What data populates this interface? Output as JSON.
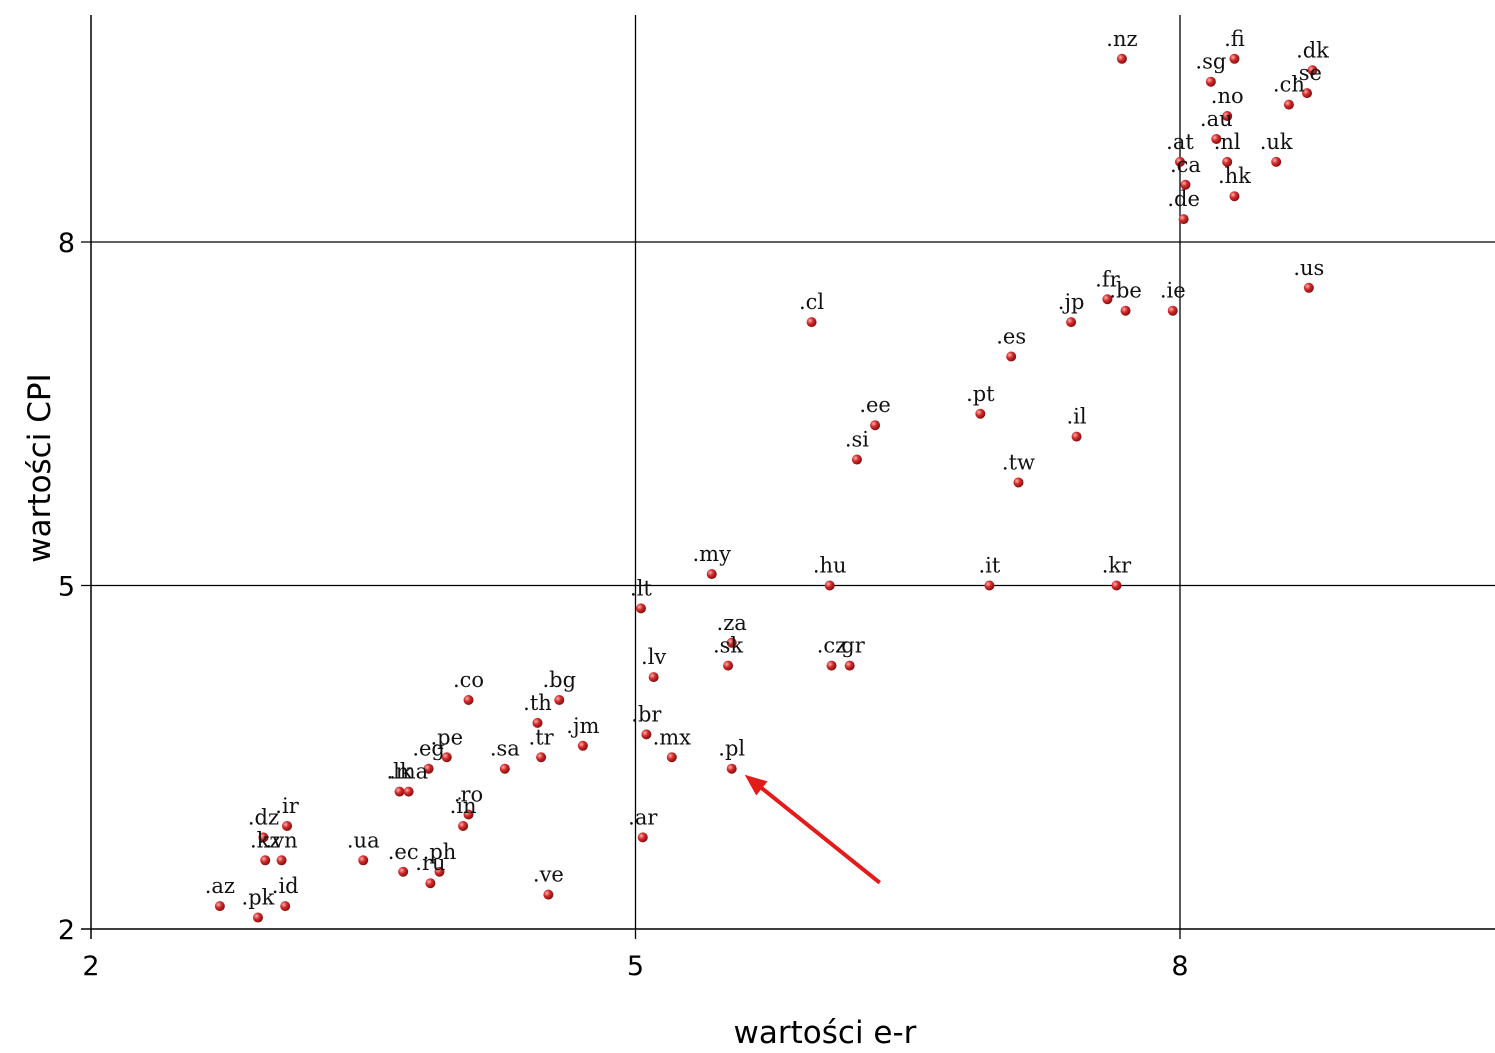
{
  "chart_data": {
    "type": "scatter",
    "xlabel": "wartości e-r",
    "ylabel": "wartości CPI",
    "xlim": [
      2,
      9.73
    ],
    "ylim": [
      2,
      10.27
    ],
    "xticks": [
      2,
      5,
      8
    ],
    "yticks": [
      2,
      5,
      8
    ],
    "grid": "reference lines at x=5, x=8, y=5, y=8",
    "marker_color": "#d42a2a",
    "arrow_color": "#e31b1b",
    "annotation": {
      "type": "arrow",
      "points_to": ".pl"
    },
    "points": [
      {
        "label": ".nz",
        "x": 7.68,
        "y": 9.6
      },
      {
        "label": ".fi",
        "x": 8.3,
        "y": 9.6
      },
      {
        "label": ".sg",
        "x": 8.17,
        "y": 9.4
      },
      {
        "label": ".dk",
        "x": 8.73,
        "y": 9.5
      },
      {
        "label": ".se",
        "x": 8.7,
        "y": 9.3
      },
      {
        "label": ".ch",
        "x": 8.6,
        "y": 9.2
      },
      {
        "label": ".no",
        "x": 8.26,
        "y": 9.1
      },
      {
        "label": ".au",
        "x": 8.2,
        "y": 8.9
      },
      {
        "label": ".nl",
        "x": 8.26,
        "y": 8.7
      },
      {
        "label": ".at",
        "x": 8.0,
        "y": 8.7
      },
      {
        "label": ".uk",
        "x": 8.53,
        "y": 8.7
      },
      {
        "label": ".ca",
        "x": 8.03,
        "y": 8.5
      },
      {
        "label": ".hk",
        "x": 8.3,
        "y": 8.4
      },
      {
        "label": ".de",
        "x": 8.02,
        "y": 8.2
      },
      {
        "label": ".us",
        "x": 8.71,
        "y": 7.6
      },
      {
        "label": ".fr",
        "x": 7.6,
        "y": 7.5
      },
      {
        "label": ".be",
        "x": 7.7,
        "y": 7.4
      },
      {
        "label": ".ie",
        "x": 7.96,
        "y": 7.4
      },
      {
        "label": ".jp",
        "x": 7.4,
        "y": 7.3
      },
      {
        "label": ".cl",
        "x": 5.97,
        "y": 7.3
      },
      {
        "label": ".es",
        "x": 7.07,
        "y": 7.0
      },
      {
        "label": ".pt",
        "x": 6.9,
        "y": 6.5
      },
      {
        "label": ".ee",
        "x": 6.32,
        "y": 6.4
      },
      {
        "label": ".il",
        "x": 7.43,
        "y": 6.3
      },
      {
        "label": ".si",
        "x": 6.22,
        "y": 6.1
      },
      {
        "label": ".tw",
        "x": 7.11,
        "y": 5.9
      },
      {
        "label": ".my",
        "x": 5.42,
        "y": 5.1
      },
      {
        "label": ".hu",
        "x": 6.07,
        "y": 5.0
      },
      {
        "label": ".it",
        "x": 6.95,
        "y": 5.0
      },
      {
        "label": ".kr",
        "x": 7.65,
        "y": 5.0
      },
      {
        "label": ".lt",
        "x": 5.03,
        "y": 4.8
      },
      {
        "label": ".za",
        "x": 5.53,
        "y": 4.5
      },
      {
        "label": ".sk",
        "x": 5.51,
        "y": 4.3
      },
      {
        "label": ".cz",
        "x": 6.08,
        "y": 4.3
      },
      {
        "label": ".gr",
        "x": 6.18,
        "y": 4.3
      },
      {
        "label": ".lv",
        "x": 5.1,
        "y": 4.2
      },
      {
        "label": ".co",
        "x": 4.08,
        "y": 4.0
      },
      {
        "label": ".bg",
        "x": 4.58,
        "y": 4.0
      },
      {
        "label": ".th",
        "x": 4.46,
        "y": 3.8
      },
      {
        "label": ".br",
        "x": 5.06,
        "y": 3.7
      },
      {
        "label": ".jm",
        "x": 4.71,
        "y": 3.6
      },
      {
        "label": ".tr",
        "x": 4.48,
        "y": 3.5
      },
      {
        "label": ".mx",
        "x": 5.2,
        "y": 3.5
      },
      {
        "label": ".pe",
        "x": 3.96,
        "y": 3.5
      },
      {
        "label": ".eg",
        "x": 3.86,
        "y": 3.4
      },
      {
        "label": ".sa",
        "x": 4.28,
        "y": 3.4
      },
      {
        "label": ".pl",
        "x": 5.53,
        "y": 3.4
      },
      {
        "label": ".lk",
        "x": 3.7,
        "y": 3.2
      },
      {
        "label": ".ma",
        "x": 3.75,
        "y": 3.2
      },
      {
        "label": ".ro",
        "x": 4.08,
        "y": 3.0
      },
      {
        "label": ".in",
        "x": 4.05,
        "y": 2.9
      },
      {
        "label": ".dz",
        "x": 2.95,
        "y": 2.8
      },
      {
        "label": ".ir",
        "x": 3.08,
        "y": 2.9
      },
      {
        "label": ".ar",
        "x": 5.04,
        "y": 2.8
      },
      {
        "label": ".ua",
        "x": 3.5,
        "y": 2.6
      },
      {
        "label": ".kz",
        "x": 2.96,
        "y": 2.6
      },
      {
        "label": ".vn",
        "x": 3.05,
        "y": 2.6
      },
      {
        "label": ".ec",
        "x": 3.72,
        "y": 2.5
      },
      {
        "label": ".ph",
        "x": 3.92,
        "y": 2.5
      },
      {
        "label": ".ru",
        "x": 3.87,
        "y": 2.4
      },
      {
        "label": ".ve",
        "x": 4.52,
        "y": 2.3
      },
      {
        "label": ".az",
        "x": 2.71,
        "y": 2.2
      },
      {
        "label": ".pk",
        "x": 2.92,
        "y": 2.1
      },
      {
        "label": ".id",
        "x": 3.07,
        "y": 2.2
      }
    ]
  }
}
